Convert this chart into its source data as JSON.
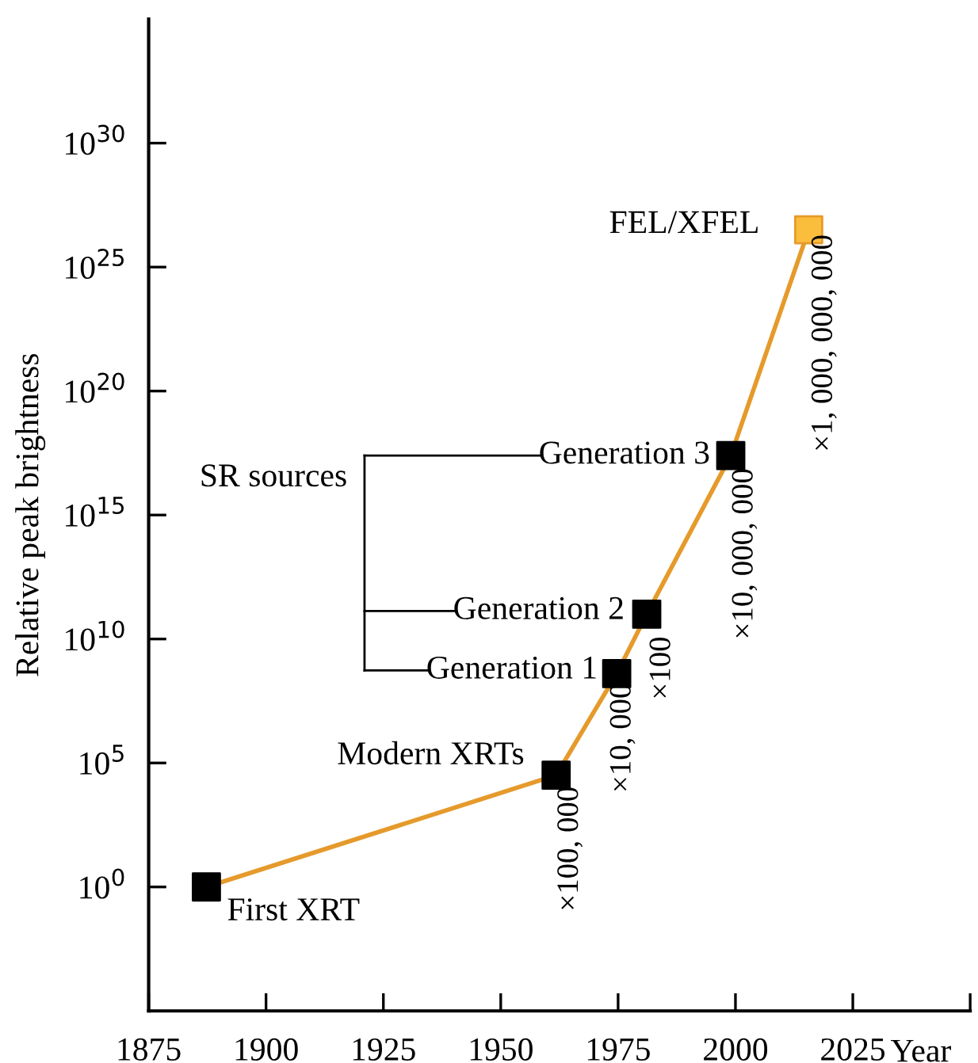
{
  "chart_data": {
    "type": "line",
    "xlabel": "Year",
    "ylabel": "Relative peak brightness",
    "x": [
      1887.3,
      1961.8,
      1974.7,
      1981.1,
      1999.0,
      2015.6
    ],
    "series": [
      {
        "color": "#e59a2b",
        "colors": [
          "#000000",
          "#000000",
          "#000000",
          "#000000",
          "#000000",
          "#fbbd3c"
        ],
        "values": [
          1,
          32000.0,
          400000000.0,
          100000000000.0,
          2.5e+17,
          3.2e+26
        ]
      }
    ],
    "marker": "square",
    "line_style": "solid",
    "log": "y",
    "xlim": [
      1875,
      2050
    ],
    "xticks": [
      1875,
      1900,
      1925,
      1950,
      1975,
      2000,
      2025,
      {
        "value": 2050,
        "label": null
      }
    ],
    "ylim": [
      1e-05,
      1e+35
    ],
    "yticks": [
      {
        "value": 1,
        "label": "10$^{0}$"
      },
      {
        "value": 100000.0,
        "label": "10$^{5}$"
      },
      {
        "value": 10000000000.0,
        "label": "10$^{10}$"
      },
      {
        "value": 1000000000000000.0,
        "label": "10$^{15}$"
      },
      {
        "value": 1e+20,
        "label": "10$^{20}$"
      },
      {
        "value": 1e+25,
        "label": "10$^{25}$"
      },
      {
        "value": 1e+30,
        "label": "10$^{30}$"
      }
    ],
    "grid": false,
    "annotations": [
      "First XRT",
      "Modern XRTs",
      "Generation 1",
      "Generation 2",
      "Generation 3",
      "FEL/XFEL",
      "SR sources",
      "×100, 000",
      "×10, 000",
      "×100",
      "×10, 000, 000",
      "×1, 000, 000, 000"
    ]
  }
}
